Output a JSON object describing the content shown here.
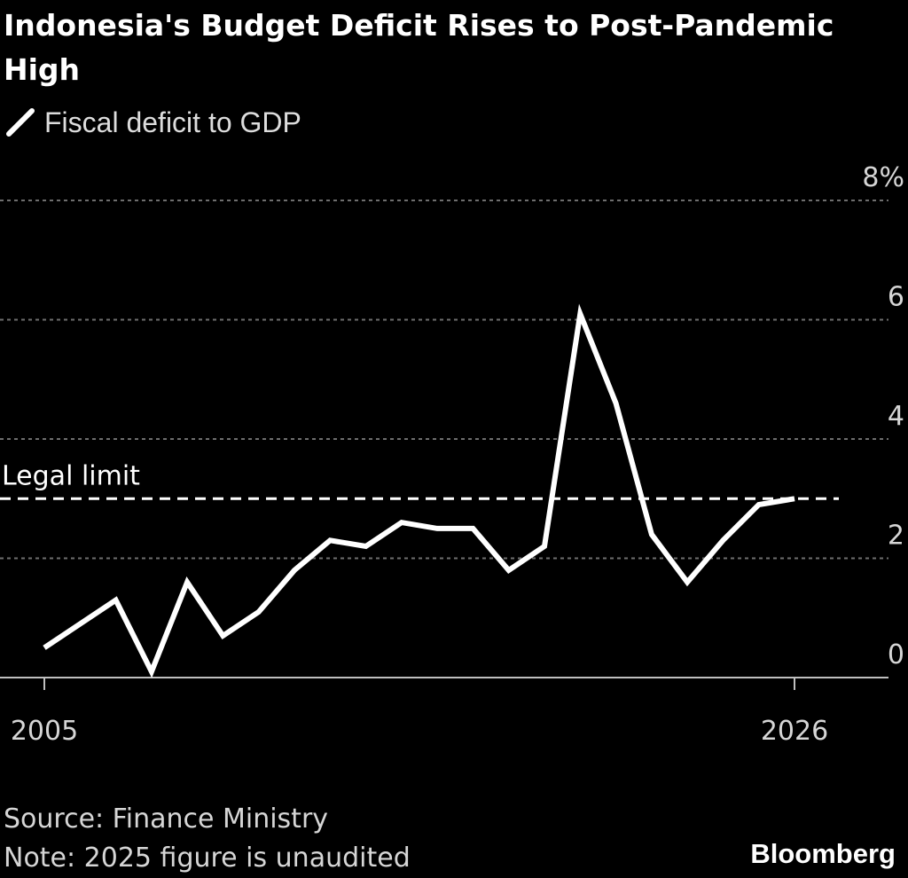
{
  "title": "Indonesia's Budget Deficit Rises to Post-Pandemic High",
  "legend": {
    "label": "Fiscal deficit to GDP"
  },
  "colors": {
    "background": "#000000",
    "series": "#ffffff",
    "grid": "#6e6e6e",
    "text": "#d6d6d6"
  },
  "chart_data": {
    "type": "line",
    "x": [
      2005,
      2006,
      2007,
      2008,
      2009,
      2010,
      2011,
      2012,
      2013,
      2014,
      2015,
      2016,
      2017,
      2018,
      2019,
      2020,
      2021,
      2022,
      2023,
      2024,
      2025,
      2026
    ],
    "series": [
      {
        "name": "Fiscal deficit to GDP",
        "values": [
          0.5,
          0.9,
          1.3,
          0.1,
          1.6,
          0.7,
          1.1,
          1.8,
          2.3,
          2.2,
          2.6,
          2.5,
          2.5,
          1.8,
          2.2,
          6.1,
          4.6,
          2.4,
          1.6,
          2.3,
          2.9,
          3.0
        ]
      }
    ],
    "reference_line": {
      "label": "Legal limit",
      "value": 3,
      "style": "dashed"
    },
    "yticks": [
      0,
      2,
      4,
      6,
      8
    ],
    "ytick_labels": [
      "0",
      "2",
      "4",
      "6",
      "8%"
    ],
    "xtick_labels": [
      "2005",
      "2026"
    ],
    "ylim": [
      0,
      8
    ],
    "xlim": [
      2005,
      2026
    ],
    "grid": true,
    "y_axis_position": "right",
    "legend_position": "top-left"
  },
  "footer": {
    "source": "Source: Finance Ministry",
    "note": "Note: 2025 figure is unaudited",
    "brand": "Bloomberg"
  }
}
